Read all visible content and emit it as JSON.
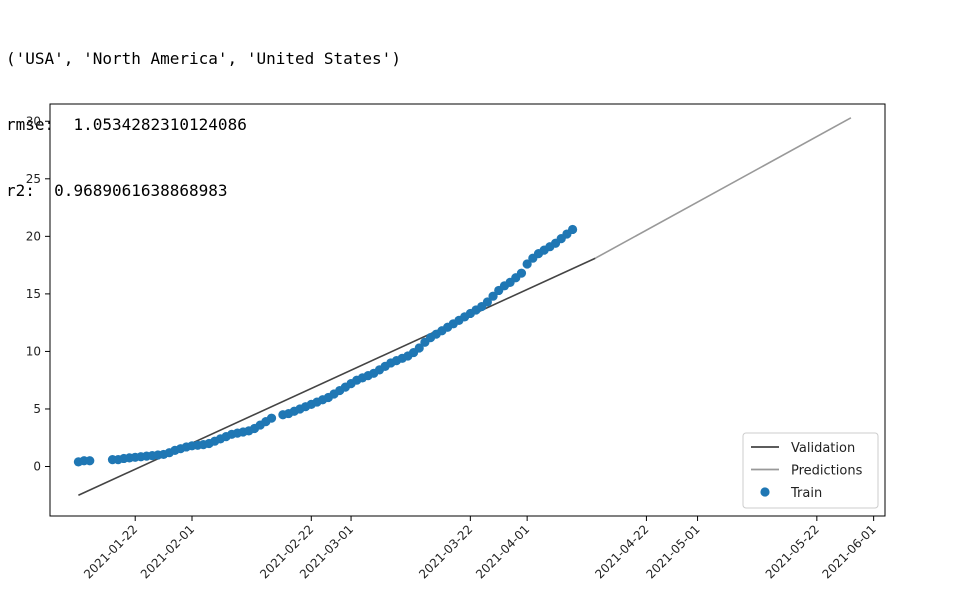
{
  "output": {
    "tuple_line": "('USA', 'North America', 'United States')",
    "rmse_label": "rmse:",
    "rmse_value": "1.0534282310124086",
    "r2_label": "r2:",
    "r2_value": "0.9689061638868983"
  },
  "chart_data": {
    "type": "scatter",
    "title": "",
    "xlabel": "",
    "ylabel": "",
    "xlim": [
      "2021-01-07",
      "2021-06-03"
    ],
    "ylim": [
      -4.3,
      31.5
    ],
    "grid": false,
    "x_ticks": [
      "2021-01-22",
      "2021-02-01",
      "2021-02-22",
      "2021-03-01",
      "2021-03-22",
      "2021-04-01",
      "2021-04-22",
      "2021-05-01",
      "2021-05-22",
      "2021-06-01"
    ],
    "y_ticks": [
      0,
      5,
      10,
      15,
      20,
      25,
      30
    ],
    "legend": {
      "position": "lower-right",
      "entries": [
        {
          "label": "Validation",
          "kind": "line",
          "color": "#444444"
        },
        {
          "label": "Predictions",
          "kind": "line",
          "color": "#999999"
        },
        {
          "label": "Train",
          "kind": "marker",
          "color": "#1f77b4"
        }
      ]
    },
    "series": [
      {
        "name": "Validation",
        "kind": "line",
        "color": "#444444",
        "points": [
          [
            "2021-01-12",
            -2.5
          ],
          [
            "2021-04-13",
            18.1
          ]
        ]
      },
      {
        "name": "Predictions",
        "kind": "line",
        "color": "#999999",
        "points": [
          [
            "2021-04-13",
            18.1
          ],
          [
            "2021-05-28",
            30.3
          ]
        ]
      },
      {
        "name": "Train",
        "kind": "scatter",
        "color": "#1f77b4",
        "points": [
          [
            "2021-01-12",
            0.4
          ],
          [
            "2021-01-13",
            0.5
          ],
          [
            "2021-01-14",
            0.5
          ],
          [
            "2021-01-18",
            0.6
          ],
          [
            "2021-01-19",
            0.6
          ],
          [
            "2021-01-20",
            0.7
          ],
          [
            "2021-01-21",
            0.75
          ],
          [
            "2021-01-22",
            0.8
          ],
          [
            "2021-01-23",
            0.85
          ],
          [
            "2021-01-24",
            0.9
          ],
          [
            "2021-01-25",
            0.95
          ],
          [
            "2021-01-26",
            1.0
          ],
          [
            "2021-01-27",
            1.05
          ],
          [
            "2021-01-28",
            1.2
          ],
          [
            "2021-01-29",
            1.4
          ],
          [
            "2021-01-30",
            1.55
          ],
          [
            "2021-01-31",
            1.7
          ],
          [
            "2021-02-01",
            1.8
          ],
          [
            "2021-02-02",
            1.85
          ],
          [
            "2021-02-03",
            1.9
          ],
          [
            "2021-02-04",
            2.0
          ],
          [
            "2021-02-05",
            2.2
          ],
          [
            "2021-02-06",
            2.4
          ],
          [
            "2021-02-07",
            2.6
          ],
          [
            "2021-02-08",
            2.8
          ],
          [
            "2021-02-09",
            2.9
          ],
          [
            "2021-02-10",
            3.0
          ],
          [
            "2021-02-11",
            3.1
          ],
          [
            "2021-02-12",
            3.3
          ],
          [
            "2021-02-13",
            3.6
          ],
          [
            "2021-02-14",
            3.9
          ],
          [
            "2021-02-15",
            4.2
          ],
          [
            "2021-02-17",
            4.5
          ],
          [
            "2021-02-18",
            4.6
          ],
          [
            "2021-02-19",
            4.8
          ],
          [
            "2021-02-20",
            5.0
          ],
          [
            "2021-02-21",
            5.2
          ],
          [
            "2021-02-22",
            5.4
          ],
          [
            "2021-02-23",
            5.6
          ],
          [
            "2021-02-24",
            5.8
          ],
          [
            "2021-02-25",
            6.0
          ],
          [
            "2021-02-26",
            6.3
          ],
          [
            "2021-02-27",
            6.6
          ],
          [
            "2021-02-28",
            6.9
          ],
          [
            "2021-03-01",
            7.2
          ],
          [
            "2021-03-02",
            7.5
          ],
          [
            "2021-03-03",
            7.7
          ],
          [
            "2021-03-04",
            7.9
          ],
          [
            "2021-03-05",
            8.1
          ],
          [
            "2021-03-06",
            8.4
          ],
          [
            "2021-03-07",
            8.7
          ],
          [
            "2021-03-08",
            9.0
          ],
          [
            "2021-03-09",
            9.2
          ],
          [
            "2021-03-10",
            9.4
          ],
          [
            "2021-03-11",
            9.6
          ],
          [
            "2021-03-12",
            9.9
          ],
          [
            "2021-03-13",
            10.3
          ],
          [
            "2021-03-14",
            10.8
          ],
          [
            "2021-03-15",
            11.2
          ],
          [
            "2021-03-16",
            11.5
          ],
          [
            "2021-03-17",
            11.8
          ],
          [
            "2021-03-18",
            12.1
          ],
          [
            "2021-03-19",
            12.4
          ],
          [
            "2021-03-20",
            12.7
          ],
          [
            "2021-03-21",
            13.0
          ],
          [
            "2021-03-22",
            13.3
          ],
          [
            "2021-03-23",
            13.6
          ],
          [
            "2021-03-24",
            13.9
          ],
          [
            "2021-03-25",
            14.3
          ],
          [
            "2021-03-26",
            14.8
          ],
          [
            "2021-03-27",
            15.3
          ],
          [
            "2021-03-28",
            15.7
          ],
          [
            "2021-03-29",
            16.0
          ],
          [
            "2021-03-30",
            16.4
          ],
          [
            "2021-03-31",
            16.8
          ],
          [
            "2021-04-01",
            17.6
          ],
          [
            "2021-04-02",
            18.1
          ],
          [
            "2021-04-03",
            18.5
          ],
          [
            "2021-04-04",
            18.8
          ],
          [
            "2021-04-05",
            19.1
          ],
          [
            "2021-04-06",
            19.4
          ],
          [
            "2021-04-07",
            19.8
          ],
          [
            "2021-04-08",
            20.2
          ],
          [
            "2021-04-09",
            20.6
          ]
        ]
      }
    ]
  }
}
